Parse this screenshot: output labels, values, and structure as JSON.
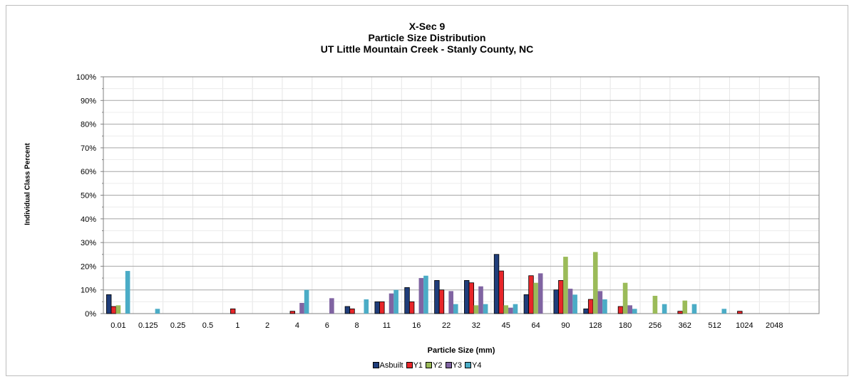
{
  "chart_data": {
    "type": "bar",
    "title": "X-Sec 9",
    "subtitle": "Particle Size Distribution",
    "subtitle2": "UT Little Mountain Creek - Stanly County, NC",
    "xlabel": "Particle Size (mm)",
    "ylabel": "Individual Class Percent",
    "ylim": [
      0,
      100
    ],
    "yticks": [
      "0%",
      "10%",
      "20%",
      "30%",
      "40%",
      "50%",
      "60%",
      "70%",
      "80%",
      "90%",
      "100%"
    ],
    "grid": true,
    "legend_position": "bottom",
    "categories": [
      "0.01",
      "0.125",
      "0.25",
      "0.5",
      "1",
      "2",
      "4",
      "6",
      "8",
      "11",
      "16",
      "22",
      "32",
      "45",
      "64",
      "90",
      "128",
      "180",
      "256",
      "362",
      "512",
      "1024",
      "2048",
      ""
    ],
    "series": [
      {
        "name": "Asbuilt",
        "color": "#1F3D7A",
        "values": [
          8,
          0,
          0,
          0,
          0,
          0,
          0,
          0,
          3,
          5,
          11,
          14,
          14,
          25,
          8,
          10,
          2,
          0,
          0,
          0,
          0,
          0,
          0,
          0
        ]
      },
      {
        "name": "Y1",
        "color": "#E8262A",
        "values": [
          3,
          0,
          0,
          0,
          2,
          0,
          1,
          0,
          2,
          5,
          5,
          10,
          13,
          18,
          16,
          14,
          6,
          3,
          0,
          1,
          0,
          1,
          0,
          0
        ]
      },
      {
        "name": "Y2",
        "color": "#9BBB59",
        "values": [
          3.5,
          0,
          0,
          0,
          0,
          0,
          0,
          0,
          0,
          0,
          0,
          0,
          3.5,
          3.5,
          13,
          24,
          26,
          13,
          7.5,
          5.5,
          0,
          0,
          0,
          0
        ]
      },
      {
        "name": "Y3",
        "color": "#8064A2",
        "values": [
          0,
          0,
          0,
          0,
          0,
          0,
          4.5,
          6.5,
          0,
          8.5,
          15,
          9.5,
          11.5,
          2.5,
          17,
          10.5,
          9.5,
          3.5,
          0,
          0,
          0,
          0,
          0,
          0
        ]
      },
      {
        "name": "Y4",
        "color": "#4BACC6",
        "values": [
          18,
          2,
          0,
          0,
          0,
          0,
          10,
          0,
          6,
          10,
          16,
          4,
          4,
          4,
          0,
          8,
          6,
          2,
          4,
          4,
          2,
          0,
          0,
          0
        ]
      }
    ]
  }
}
